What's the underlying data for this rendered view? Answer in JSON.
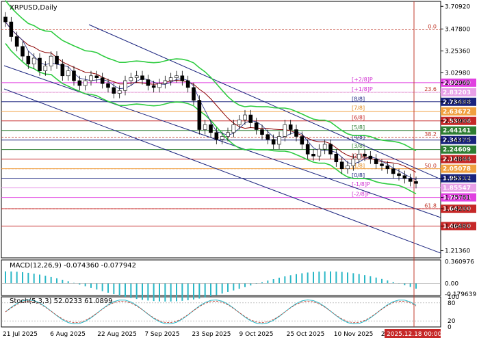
{
  "chart_data": [
    {
      "type": "candlestick",
      "symbol_label": "XRPUSD,Daily",
      "price_axis_ticks": [
        "3.70920",
        "3.47800",
        "3.25360",
        "3.02980",
        "2.92969",
        "2.73438",
        "2.53906",
        "2.34375",
        "2.14844",
        "1.95312",
        "1.75781",
        "1.64200",
        "1.46480",
        "1.21360"
      ],
      "ylim": [
        1.14,
        3.76
      ],
      "x_dates": [
        "21 Jul 2025",
        "6 Aug 2025",
        "22 Aug 2025",
        "7 Sep 2025",
        "23 Sep 2025",
        "9 Oct 2025",
        "25 Oct 2025",
        "10 Nov 2025",
        "26 Nov 2025",
        "2025.12.18 00:00"
      ],
      "series_approx_close": [
        3.55,
        3.4,
        3.3,
        3.2,
        3.12,
        3.18,
        3.05,
        3.1,
        3.2,
        3.12,
        3.0,
        3.05,
        2.95,
        2.9,
        2.95,
        3.0,
        2.98,
        2.92,
        2.88,
        2.82,
        2.85,
        2.95,
        2.98,
        3.0,
        2.96,
        2.9,
        2.88,
        2.92,
        2.95,
        2.98,
        3.0,
        2.95,
        2.88,
        2.75,
        2.45,
        2.5,
        2.42,
        2.35,
        2.38,
        2.42,
        2.5,
        2.55,
        2.6,
        2.52,
        2.45,
        2.4,
        2.35,
        2.3,
        2.38,
        2.5,
        2.45,
        2.38,
        2.3,
        2.2,
        2.18,
        2.25,
        2.3,
        2.2,
        2.12,
        2.05,
        2.08,
        2.15,
        2.2,
        2.18,
        2.15,
        2.1,
        2.08,
        2.05,
        2.0,
        1.98,
        1.95,
        1.92,
        1.9
      ],
      "fib_levels": [
        {
          "pct": "0.0",
          "price": 3.47
        },
        {
          "pct": "23.6",
          "price": 2.83
        },
        {
          "pct": "38.2",
          "price": 2.37
        },
        {
          "pct": "50.0",
          "price": 2.05
        },
        {
          "pct": "61.8",
          "price": 1.64
        }
      ],
      "murrey_labels": [
        "[+2/8]P",
        "[+1/8]P",
        "[8/8]",
        "[7/8]",
        "[6/8]",
        "[5/8]",
        "[4/8]",
        "[3/8]",
        "[2/8]",
        "[1/8]",
        "[0/8]",
        "[-1/8]P",
        "[-2/8]P"
      ],
      "price_tags": [
        {
          "text": "2.92969",
          "color": "#e040e0"
        },
        {
          "text": "2.83203",
          "color": "#e8a0e8"
        },
        {
          "text": "2.73438",
          "color": "#1a237e"
        },
        {
          "text": "2.63672",
          "color": "#f0a040"
        },
        {
          "text": "2.53906",
          "color": "#c62828"
        },
        {
          "text": "2.44141",
          "color": "#2e7d32"
        },
        {
          "text": "2.34375",
          "color": "#1a237e"
        },
        {
          "text": "2.24609",
          "color": "#2e7d32"
        },
        {
          "text": "2.14844",
          "color": "#c62828"
        },
        {
          "text": "2.05078",
          "color": "#f0a040"
        },
        {
          "text": "1.95312",
          "color": "#1a237e"
        },
        {
          "text": "1.85547",
          "color": "#e8a0e8"
        },
        {
          "text": "1.75781",
          "color": "#e040e0"
        },
        {
          "text": "1.64200",
          "color": "#c62828"
        },
        {
          "text": "1.46480",
          "color": "#c62828"
        }
      ]
    },
    {
      "type": "macd",
      "label": "MACD(12,26,9) -0.074360 -0.077942",
      "ticks": [
        "0.360976",
        "0.00",
        "-0.179639"
      ],
      "ylim": [
        -0.2,
        0.39
      ]
    },
    {
      "type": "stochastic",
      "label": "Stoch(5,3,3) 52.0233 61.0899",
      "ticks": [
        "100",
        "80",
        "20",
        "0"
      ],
      "ylim": [
        0,
        100
      ]
    }
  ]
}
